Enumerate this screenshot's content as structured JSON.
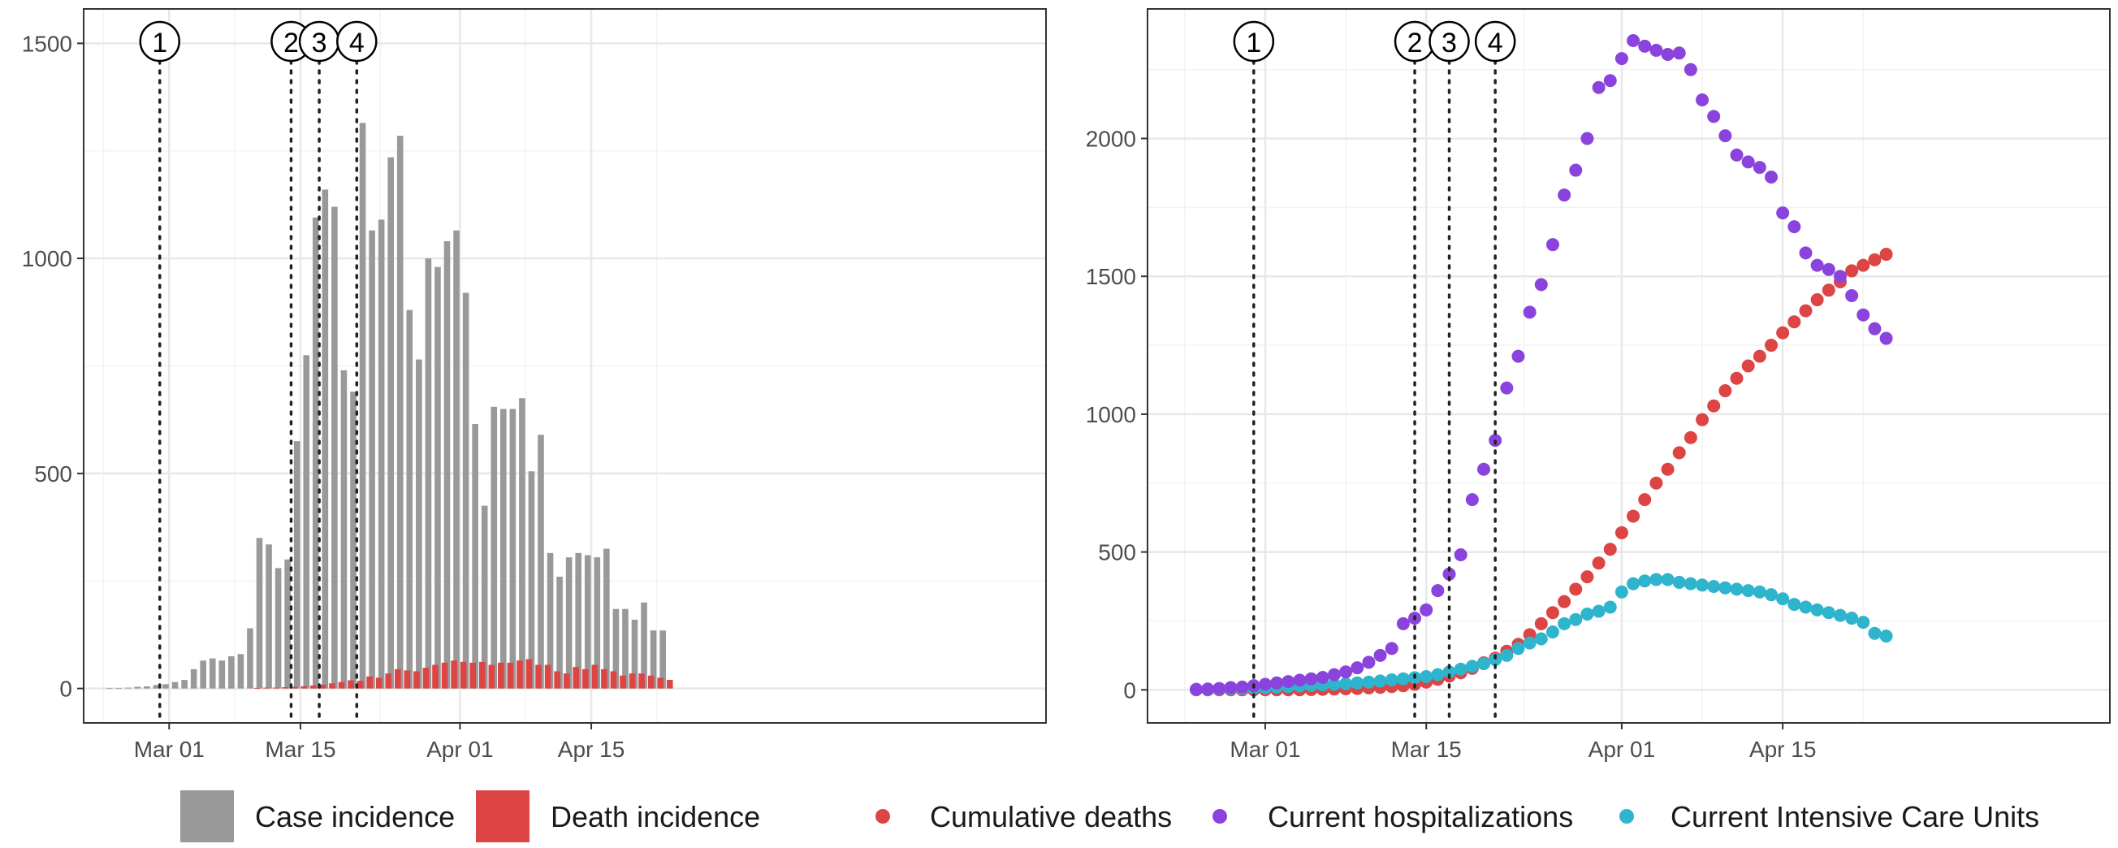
{
  "colors": {
    "case_bar": "#999999",
    "death_bar": "#dd4444",
    "cumulative_deaths": "#dd4444",
    "hospitalizations": "#8a44dd",
    "icu": "#2eb4cc",
    "grid_major": "#e8e8e8",
    "grid_minor": "#f3f3f3",
    "panel_border": "#333333"
  },
  "chart_data": [
    {
      "type": "bar",
      "x_start_date": "2020-02-24",
      "xticks": [
        "Mar 01",
        "Mar 15",
        "Apr 01",
        "Apr 15"
      ],
      "xtick_dates": [
        "2020-03-01",
        "2020-03-15",
        "2020-04-01",
        "2020-04-15"
      ],
      "yticks": [
        "0",
        "500",
        "1000",
        "1500"
      ],
      "ylim": [
        -80,
        1580
      ],
      "grid": true,
      "event_markers": [
        {
          "label": "1",
          "date": "2020-02-29"
        },
        {
          "label": "2",
          "date": "2020-03-14"
        },
        {
          "label": "3",
          "date": "2020-03-17"
        },
        {
          "label": "4",
          "date": "2020-03-21"
        }
      ],
      "series": [
        {
          "name": "Case incidence",
          "values": [
            1,
            1,
            2,
            4,
            5,
            8,
            10,
            15,
            20,
            45,
            65,
            70,
            65,
            75,
            80,
            140,
            350,
            335,
            280,
            300,
            575,
            775,
            1095,
            1160,
            1120,
            740,
            690,
            1315,
            1065,
            1090,
            1235,
            1285,
            880,
            765,
            1000,
            980,
            1040,
            1065,
            920,
            615,
            425,
            655,
            650,
            650,
            675,
            505,
            590,
            315,
            260,
            305,
            315,
            310,
            305,
            325,
            185,
            185,
            160,
            200,
            135,
            135
          ]
        },
        {
          "name": "Death incidence",
          "values": [
            0,
            0,
            0,
            0,
            0,
            0,
            0,
            0,
            0,
            0,
            0,
            0,
            0,
            0,
            0,
            1,
            2,
            2,
            3,
            4,
            5,
            7,
            9,
            12,
            15,
            19,
            18,
            28,
            25,
            35,
            45,
            42,
            40,
            48,
            55,
            60,
            65,
            62,
            60,
            62,
            55,
            60,
            60,
            65,
            68,
            55,
            55,
            40,
            35,
            50,
            45,
            55,
            45,
            40,
            30,
            35,
            35,
            30,
            25,
            20
          ]
        }
      ]
    },
    {
      "type": "scatter",
      "x_start_date": "2020-02-24",
      "xticks": [
        "Mar 01",
        "Mar 15",
        "Apr 01",
        "Apr 15"
      ],
      "xtick_dates": [
        "2020-03-01",
        "2020-03-15",
        "2020-04-01",
        "2020-04-15"
      ],
      "yticks": [
        "0",
        "500",
        "1000",
        "1500",
        "2000"
      ],
      "ylim": [
        -120,
        2470
      ],
      "grid": true,
      "event_markers": [
        {
          "label": "1",
          "date": "2020-02-29"
        },
        {
          "label": "2",
          "date": "2020-03-14"
        },
        {
          "label": "3",
          "date": "2020-03-17"
        },
        {
          "label": "4",
          "date": "2020-03-21"
        }
      ],
      "series": [
        {
          "name": "Cumulative deaths",
          "values": [
            0,
            0,
            0,
            0,
            0,
            0,
            0,
            0,
            0,
            0,
            1,
            2,
            3,
            4,
            5,
            7,
            9,
            12,
            15,
            20,
            28,
            38,
            50,
            62,
            78,
            98,
            115,
            140,
            165,
            200,
            240,
            280,
            320,
            365,
            410,
            460,
            510,
            570,
            630,
            690,
            750,
            800,
            860,
            915,
            980,
            1030,
            1085,
            1130,
            1175,
            1210,
            1250,
            1295,
            1335,
            1375,
            1415,
            1450,
            1480,
            1520,
            1540,
            1560,
            1580
          ]
        },
        {
          "name": "Current hospitalizations",
          "values": [
            2,
            3,
            5,
            8,
            10,
            15,
            20,
            25,
            30,
            35,
            40,
            45,
            55,
            65,
            80,
            100,
            125,
            150,
            240,
            260,
            290,
            360,
            420,
            490,
            690,
            800,
            905,
            1095,
            1210,
            1370,
            1470,
            1615,
            1795,
            1885,
            2000,
            2185,
            2210,
            2290,
            2355,
            2335,
            2320,
            2305,
            2310,
            2250,
            2140,
            2080,
            2010,
            1940,
            1915,
            1895,
            1860,
            1730,
            1680,
            1585,
            1540,
            1525,
            1500,
            1430,
            1360,
            1310,
            1275
          ]
        },
        {
          "name": "Current Intensive Care Units",
          "values": [
            1,
            2,
            3,
            4,
            5,
            6,
            8,
            10,
            12,
            14,
            16,
            18,
            20,
            22,
            25,
            28,
            32,
            36,
            40,
            44,
            48,
            55,
            65,
            75,
            85,
            95,
            110,
            125,
            150,
            170,
            185,
            210,
            240,
            255,
            275,
            285,
            300,
            355,
            385,
            395,
            400,
            400,
            390,
            385,
            380,
            375,
            370,
            365,
            360,
            355,
            345,
            330,
            310,
            300,
            290,
            280,
            270,
            260,
            245,
            205,
            195
          ]
        }
      ]
    }
  ],
  "legend": {
    "bar_items": [
      {
        "label": "Case incidence"
      },
      {
        "label": "Death incidence"
      }
    ],
    "point_items": [
      {
        "label": "Cumulative deaths"
      },
      {
        "label": "Current hospitalizations"
      },
      {
        "label": "Current Intensive Care Units"
      }
    ]
  }
}
